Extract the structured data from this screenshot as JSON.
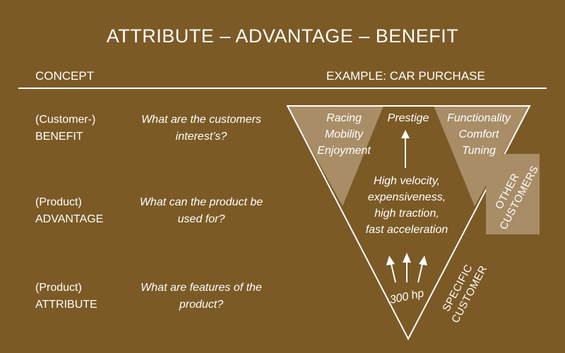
{
  "title": "ATTRIBUTE – ADVANTAGE – BENEFIT",
  "concept_header": "CONCEPT",
  "example_header": "EXAMPLE: CAR PURCHASE",
  "rows": [
    {
      "line1": "(Customer-)",
      "line2": "BENEFIT",
      "q1": "What are the customers",
      "q2": "interest’s?"
    },
    {
      "line1": "(Product)",
      "line2": "ADVANTAGE",
      "q1": "What can the product be",
      "q2": "used for?"
    },
    {
      "line1": "(Product)",
      "line2": "ATTRIBUTE",
      "q1": "What are features of the",
      "q2": "product?"
    }
  ],
  "pyramid": {
    "left_benefits": [
      "Racing",
      "Mobility",
      "Enjoyment"
    ],
    "center_benefit": "Prestige",
    "right_benefits": [
      "Functionality",
      "Comfort",
      "Tuning"
    ],
    "advantages": [
      "High velocity,",
      "expensiveness,",
      "high traction,",
      "fast acceleration"
    ],
    "attribute": "300 hp",
    "specific_customer": [
      "SPECIFIC",
      "CUSTOMER"
    ],
    "other_customers": [
      "OTHER",
      "CUSTOMERS"
    ]
  },
  "colors": {
    "background": "#7b5a26",
    "shade": "#a88d67",
    "text": "#ffffff"
  }
}
